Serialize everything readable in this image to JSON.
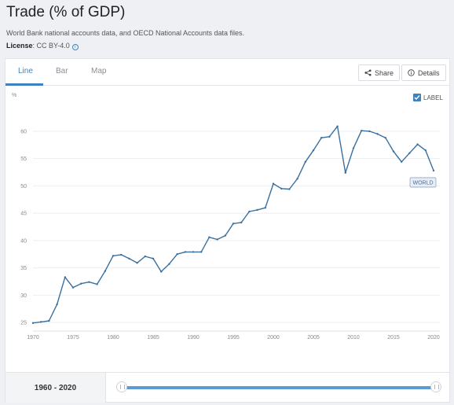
{
  "header": {
    "title": "Trade (% of GDP)",
    "source": "World Bank national accounts data, and OECD National Accounts data files.",
    "license_label": "License",
    "license_value": ": CC BY-4.0"
  },
  "tabs": [
    {
      "label": "Line",
      "active": true
    },
    {
      "label": "Bar",
      "active": false
    },
    {
      "label": "Map",
      "active": false
    }
  ],
  "toolbar": {
    "share_label": "Share",
    "details_label": "Details",
    "label_toggle": "LABEL",
    "label_checked": true
  },
  "range": {
    "start": "1960",
    "end": "2020",
    "separator": " - "
  },
  "colors": {
    "accent": "#3f80bf",
    "line": "#3a6f9e",
    "slider": "#5b9bd5"
  },
  "chart_data": {
    "type": "line",
    "ylabel": "%",
    "ylim": [
      24,
      62
    ],
    "xlim": [
      1970,
      2020
    ],
    "yticks": [
      25,
      30,
      35,
      40,
      45,
      50,
      55,
      60
    ],
    "xticks": [
      1970,
      1975,
      1980,
      1985,
      1990,
      1995,
      2000,
      2005,
      2010,
      2015,
      2020
    ],
    "grid": "horizontal",
    "series": [
      {
        "name": "WORLD",
        "x": [
          1970,
          1971,
          1972,
          1973,
          1974,
          1975,
          1976,
          1977,
          1978,
          1979,
          1980,
          1981,
          1982,
          1983,
          1984,
          1985,
          1986,
          1987,
          1988,
          1989,
          1990,
          1991,
          1992,
          1993,
          1994,
          1995,
          1996,
          1997,
          1998,
          1999,
          2000,
          2001,
          2002,
          2003,
          2004,
          2005,
          2006,
          2007,
          2008,
          2009,
          2010,
          2011,
          2012,
          2013,
          2014,
          2015,
          2016,
          2017,
          2018,
          2019,
          2020
        ],
        "values": [
          24.9,
          25.1,
          25.3,
          28.3,
          33.3,
          31.4,
          32.1,
          32.4,
          32.0,
          34.4,
          37.2,
          37.4,
          36.7,
          35.9,
          37.1,
          36.7,
          34.3,
          35.7,
          37.5,
          37.9,
          37.9,
          37.9,
          40.6,
          40.2,
          40.9,
          43.1,
          43.3,
          45.3,
          45.6,
          46.0,
          50.4,
          49.5,
          49.4,
          51.3,
          54.4,
          56.5,
          58.8,
          59.0,
          60.9,
          52.4,
          56.9,
          60.1,
          60.0,
          59.5,
          58.8,
          56.3,
          54.4,
          56.0,
          57.6,
          56.5,
          52.8
        ]
      }
    ]
  }
}
